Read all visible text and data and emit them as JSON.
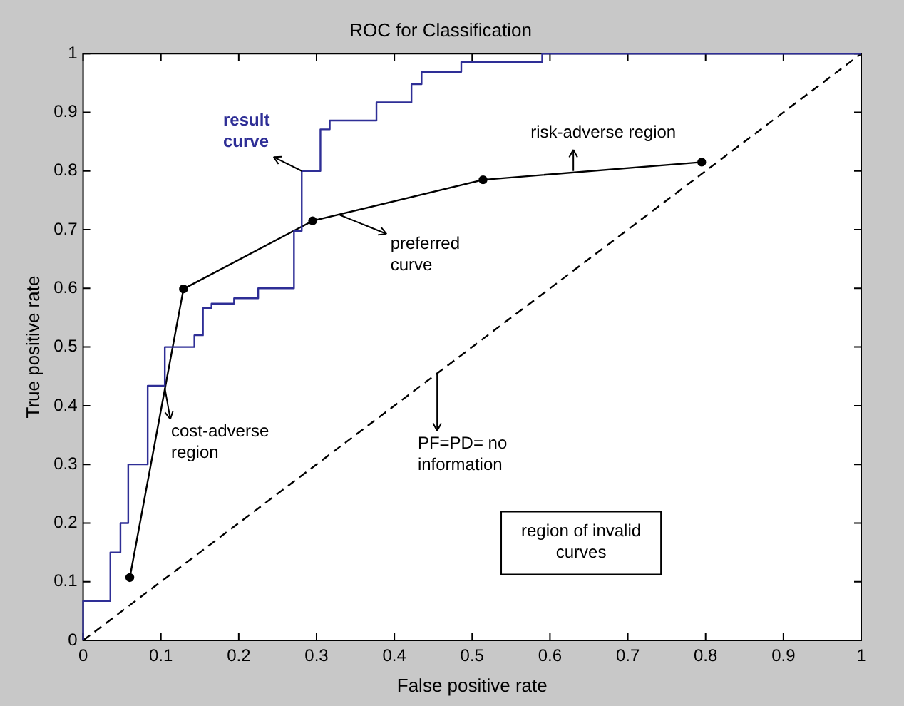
{
  "chart_data": {
    "type": "line",
    "title": "ROC for Classification",
    "xlabel": "False positive rate",
    "ylabel": "True positive rate",
    "xlim": [
      0,
      1
    ],
    "ylim": [
      0,
      1
    ],
    "xticks": [
      0,
      0.1,
      0.2,
      0.3,
      0.4,
      0.5,
      0.6,
      0.7,
      0.8,
      0.9,
      1
    ],
    "yticks": [
      0,
      0.1,
      0.2,
      0.3,
      0.4,
      0.5,
      0.6,
      0.7,
      0.8,
      0.9,
      1
    ],
    "series": [
      {
        "type": "step",
        "color": "#2e2e96",
        "x": [
          0,
          0,
          0.022,
          0.035,
          0.035,
          0.048,
          0.048,
          0.058,
          0.058,
          0.083,
          0.083,
          0.105,
          0.105,
          0.143,
          0.143,
          0.154,
          0.165,
          0.194,
          0.225,
          0.235,
          0.271,
          0.271,
          0.281,
          0.281,
          0.305,
          0.305,
          0.317,
          0.327,
          0.377,
          0.377,
          0.422,
          0.435,
          0.448,
          0.486,
          0.495,
          0.59,
          0.6,
          1
        ],
        "values": [
          0,
          0.054,
          0.067,
          0.067,
          0.133,
          0.15,
          0.2,
          0.2,
          0.3,
          0.3,
          0.434,
          0.434,
          0.5,
          0.5,
          0.515,
          0.52,
          0.566,
          0.574,
          0.583,
          0.6,
          0.6,
          0.698,
          0.698,
          0.8,
          0.8,
          0.85,
          0.871,
          0.886,
          0.886,
          0.9,
          0.917,
          0.948,
          0.969,
          0.969,
          0.986,
          0.986,
          1,
          1
        ]
      },
      {
        "type": "line",
        "color": "#000000",
        "marker": "circle",
        "x": [
          0.06,
          0.129,
          0.295,
          0.514,
          0.795
        ],
        "values": [
          0.107,
          0.599,
          0.715,
          0.785,
          0.815
        ]
      },
      {
        "type": "line",
        "color": "#000000",
        "line_style": "dashed",
        "x": [
          0,
          1
        ],
        "values": [
          0,
          1
        ]
      }
    ],
    "annotations": [
      {
        "text": "result curve",
        "x": 0.281,
        "y": 0.8
      },
      {
        "text": "preferred curve",
        "x": 0.33,
        "y": 0.725
      },
      {
        "text": "risk-adverse region",
        "x": 0.63,
        "y": 0.8
      },
      {
        "text": "cost-adverse region",
        "x": 0.105,
        "y": 0.43
      },
      {
        "text": "PF=PD= no information",
        "x": 0.455,
        "y": 0.455
      },
      "region of invalid curves"
    ]
  }
}
